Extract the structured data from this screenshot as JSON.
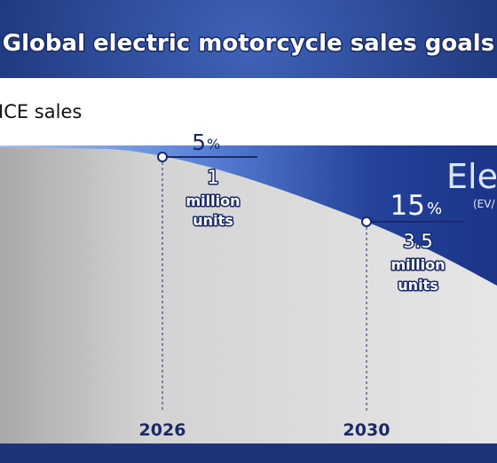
{
  "header": {
    "title": "Global electric motorcycle sales goals"
  },
  "band": {
    "label": "ICE sales"
  },
  "ev_area": {
    "label": "Ele",
    "sublabel": "(EV/"
  },
  "milestones": [
    {
      "year": "2026",
      "percent": "5",
      "percent_unit": "%",
      "volume": "1",
      "volume_unit_1": "million",
      "volume_unit_2": "units"
    },
    {
      "year": "2030",
      "percent": "15",
      "percent_unit": "%",
      "volume": "3.5",
      "volume_unit_1": "million",
      "volume_unit_2": "units"
    }
  ]
}
